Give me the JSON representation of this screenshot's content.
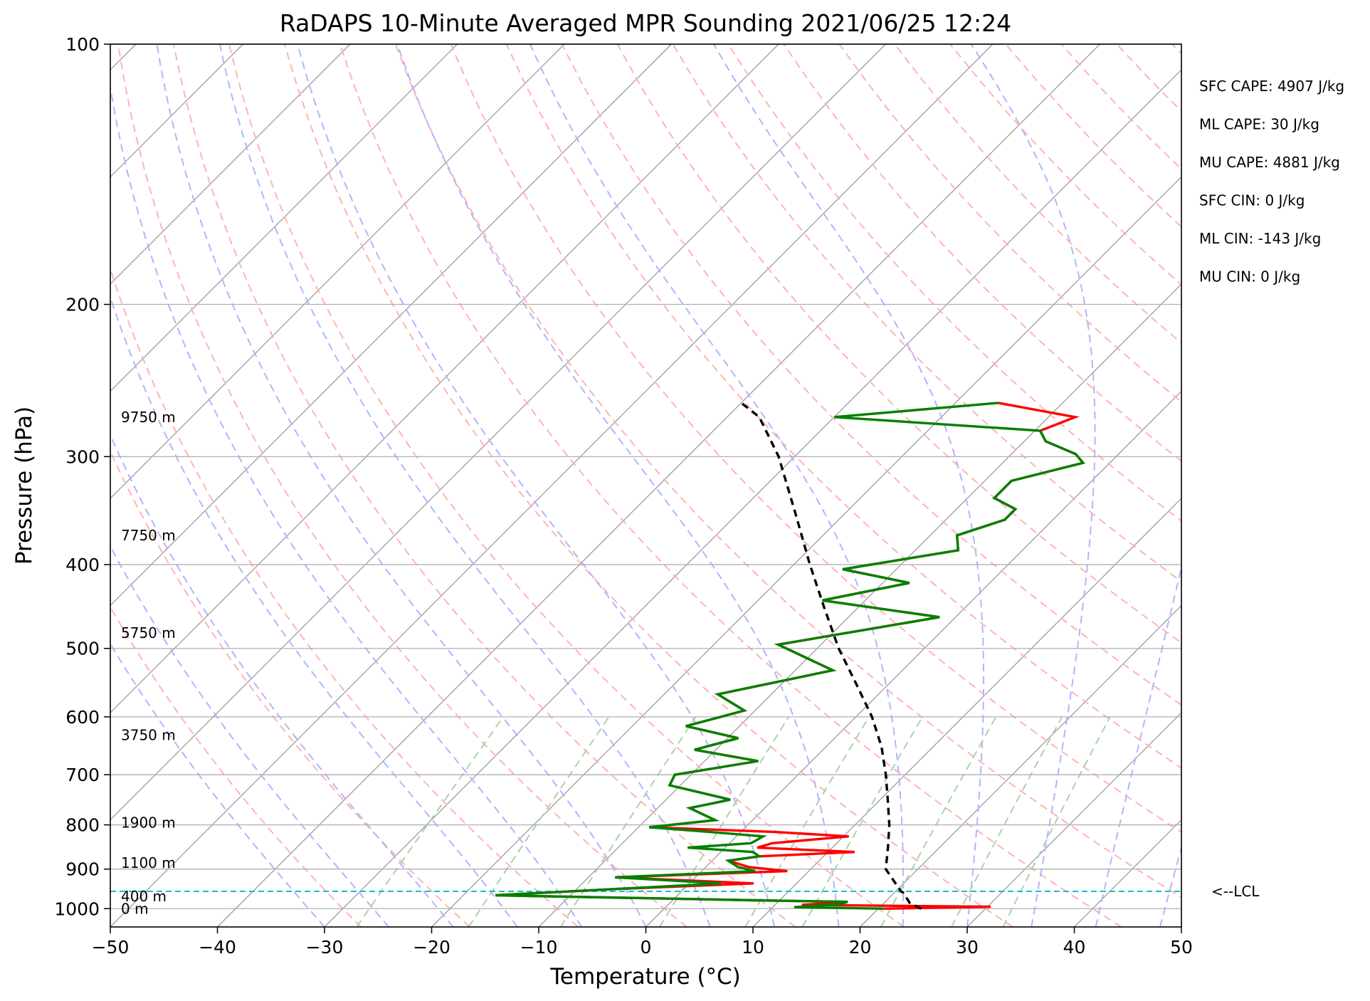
{
  "chart_data": {
    "type": "line",
    "title": "RaDAPS 10-Minute Averaged MPR Sounding 2021/06/25 12:24",
    "xlabel": "Temperature (°C)",
    "ylabel": "Pressure (hPa)",
    "xlim": [
      -50,
      50
    ],
    "ylim": [
      1050,
      100
    ],
    "y_scale": "log",
    "x_ticks": [
      -50,
      -40,
      -30,
      -20,
      -10,
      0,
      10,
      20,
      30,
      40,
      50
    ],
    "x_tick_labels": [
      "−50",
      "−40",
      "−30",
      "−20",
      "−10",
      "0",
      "10",
      "20",
      "30",
      "40",
      "50"
    ],
    "y_ticks": [
      100,
      200,
      300,
      400,
      500,
      600,
      700,
      800,
      900,
      1000
    ],
    "y_tick_labels": [
      "100",
      "200",
      "300",
      "400",
      "500",
      "600",
      "700",
      "800",
      "900",
      "1000"
    ],
    "grid": true,
    "colors": {
      "temperature": "#ff0000",
      "dewpoint": "#008000",
      "parcel": "#000000",
      "lcl": "#17becf",
      "isotherm": "#9a9a9a",
      "dry_adiabat": "#ffb3b3",
      "moist_adiabat": "#b3b3ff",
      "mixing_ratio": "#a8d4a8"
    },
    "height_labels": [
      {
        "label": "9750 m",
        "p": 270
      },
      {
        "label": "7750 m",
        "p": 370
      },
      {
        "label": "5750 m",
        "p": 480
      },
      {
        "label": "3750 m",
        "p": 630
      },
      {
        "label": "1900 m",
        "p": 795
      },
      {
        "label": "1100 m",
        "p": 885
      },
      {
        "label": "400 m",
        "p": 968
      },
      {
        "label": "0 m",
        "p": 1000
      }
    ],
    "lcl": {
      "label": "<--LCL",
      "p": 955
    },
    "stats": [
      "SFC CAPE: 4907 J/kg",
      "ML CAPE: 30 J/kg",
      "MU CAPE: 4881 J/kg",
      "SFC CIN: 0 J/kg",
      "ML CIN: -143 J/kg",
      "MU CIN: 0 J/kg"
    ],
    "series": [
      {
        "key": "temperature",
        "points": [
          [
            20.5,
            1000
          ],
          [
            30.3,
            995
          ],
          [
            12.5,
            990
          ],
          [
            16.5,
            982
          ],
          [
            7.5,
            978
          ],
          [
            -17,
            965
          ],
          [
            -7,
            950
          ],
          [
            6,
            935
          ],
          [
            -7.5,
            920
          ],
          [
            8,
            905
          ],
          [
            4,
            895
          ],
          [
            1.5,
            880
          ],
          [
            4,
            870
          ],
          [
            12.5,
            860
          ],
          [
            3,
            850
          ],
          [
            4,
            840
          ],
          [
            10.5,
            825
          ],
          [
            3,
            815
          ],
          [
            -9,
            805
          ],
          [
            -3.5,
            790
          ],
          [
            -7,
            765
          ],
          [
            -4,
            748
          ],
          [
            -11,
            720
          ],
          [
            -11.5,
            700
          ],
          [
            -5,
            675
          ],
          [
            -12,
            655
          ],
          [
            -9,
            635
          ],
          [
            -15,
            615
          ],
          [
            -11,
            590
          ],
          [
            -15,
            565
          ],
          [
            -6.5,
            530
          ],
          [
            -14,
            495
          ],
          [
            -1.5,
            460
          ],
          [
            -14,
            440
          ],
          [
            -7.5,
            420
          ],
          [
            -15,
            405
          ],
          [
            -6,
            385
          ],
          [
            -7.5,
            370
          ],
          [
            -4.5,
            355
          ],
          [
            -4.5,
            345
          ],
          [
            -7.5,
            335
          ],
          [
            -7.5,
            320
          ],
          [
            -2.5,
            305
          ],
          [
            -4,
            298
          ],
          [
            -8,
            288
          ],
          [
            -9.5,
            280
          ],
          [
            -7.5,
            270
          ],
          [
            -16,
            260
          ]
        ]
      },
      {
        "key": "dewpoint",
        "points": [
          [
            20.5,
            1000
          ],
          [
            12,
            996
          ],
          [
            16,
            988
          ],
          [
            16.5,
            982
          ],
          [
            7.5,
            978
          ],
          [
            -17,
            965
          ],
          [
            -7,
            950
          ],
          [
            3,
            935
          ],
          [
            -7.5,
            920
          ],
          [
            5,
            905
          ],
          [
            3,
            895
          ],
          [
            1.5,
            880
          ],
          [
            4,
            870
          ],
          [
            3,
            860
          ],
          [
            -3.5,
            850
          ],
          [
            2,
            840
          ],
          [
            2.5,
            825
          ],
          [
            -3,
            815
          ],
          [
            -9,
            805
          ],
          [
            -3.5,
            790
          ],
          [
            -7,
            765
          ],
          [
            -4,
            748
          ],
          [
            -11,
            720
          ],
          [
            -11.5,
            700
          ],
          [
            -5,
            675
          ],
          [
            -12,
            655
          ],
          [
            -9,
            635
          ],
          [
            -15,
            615
          ],
          [
            -11,
            590
          ],
          [
            -15,
            565
          ],
          [
            -6.5,
            530
          ],
          [
            -14,
            495
          ],
          [
            -1.5,
            460
          ],
          [
            -14,
            440
          ],
          [
            -7.5,
            420
          ],
          [
            -15,
            405
          ],
          [
            -6,
            385
          ],
          [
            -7.5,
            370
          ],
          [
            -4.5,
            355
          ],
          [
            -4.5,
            345
          ],
          [
            -7.5,
            335
          ],
          [
            -7.5,
            320
          ],
          [
            -2.5,
            305
          ],
          [
            -4,
            298
          ],
          [
            -8,
            288
          ],
          [
            -9.5,
            280
          ],
          [
            -30,
            270
          ],
          [
            -16,
            260
          ]
        ]
      },
      {
        "key": "parcel",
        "points": [
          [
            24,
            1000
          ],
          [
            22.4,
            985
          ],
          [
            20.8,
            958
          ],
          [
            20.5,
            955
          ],
          [
            17,
            900
          ],
          [
            15.2,
            850
          ],
          [
            13.2,
            800
          ],
          [
            10.8,
            750
          ],
          [
            8.2,
            700
          ],
          [
            5.2,
            650
          ],
          [
            1.5,
            600
          ],
          [
            -3,
            550
          ],
          [
            -8,
            500
          ],
          [
            -13,
            450
          ],
          [
            -18.5,
            400
          ],
          [
            -24.5,
            350
          ],
          [
            -31.5,
            300
          ],
          [
            -37,
            270
          ],
          [
            -40,
            260
          ]
        ]
      }
    ]
  }
}
